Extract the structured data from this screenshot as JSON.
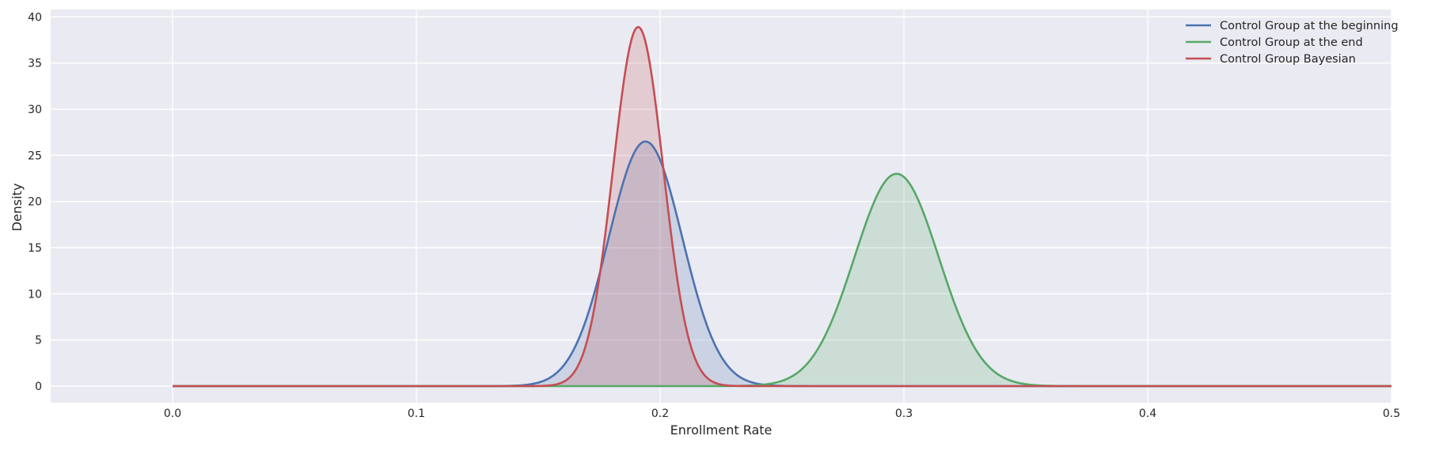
{
  "chart_data": {
    "type": "area",
    "title": "",
    "xlabel": "Enrollment Rate",
    "ylabel": "Density",
    "xlim": [
      -0.05,
      0.5
    ],
    "ylim": [
      -1.8,
      40.8
    ],
    "xticks": [
      0.0,
      0.1,
      0.2,
      0.3,
      0.4,
      0.5
    ],
    "xtick_labels": [
      "0.0",
      "0.1",
      "0.2",
      "0.3",
      "0.4",
      "0.5"
    ],
    "yticks": [
      0,
      5,
      10,
      15,
      20,
      25,
      30,
      35,
      40
    ],
    "ytick_labels": [
      "0",
      "5",
      "10",
      "15",
      "20",
      "25",
      "30",
      "35",
      "40"
    ],
    "grid": true,
    "background": "#eaeaf2",
    "legend_position": "top-right",
    "x_domain": [
      0.0,
      0.5
    ],
    "series": [
      {
        "name": "Control Group at the beginning",
        "color": "#4c72b0",
        "distribution": "normal",
        "peak_x": 0.194,
        "peak_density": 26.5,
        "std": 0.0151,
        "filled": true
      },
      {
        "name": "Control Group at the end",
        "color": "#55a868",
        "distribution": "normal",
        "peak_x": 0.297,
        "peak_density": 23.0,
        "std": 0.0173,
        "filled": true
      },
      {
        "name": "Control Group Bayesian",
        "color": "#c44e52",
        "distribution": "normal",
        "peak_x": 0.191,
        "peak_density": 38.9,
        "std": 0.0103,
        "filled": true
      }
    ]
  }
}
